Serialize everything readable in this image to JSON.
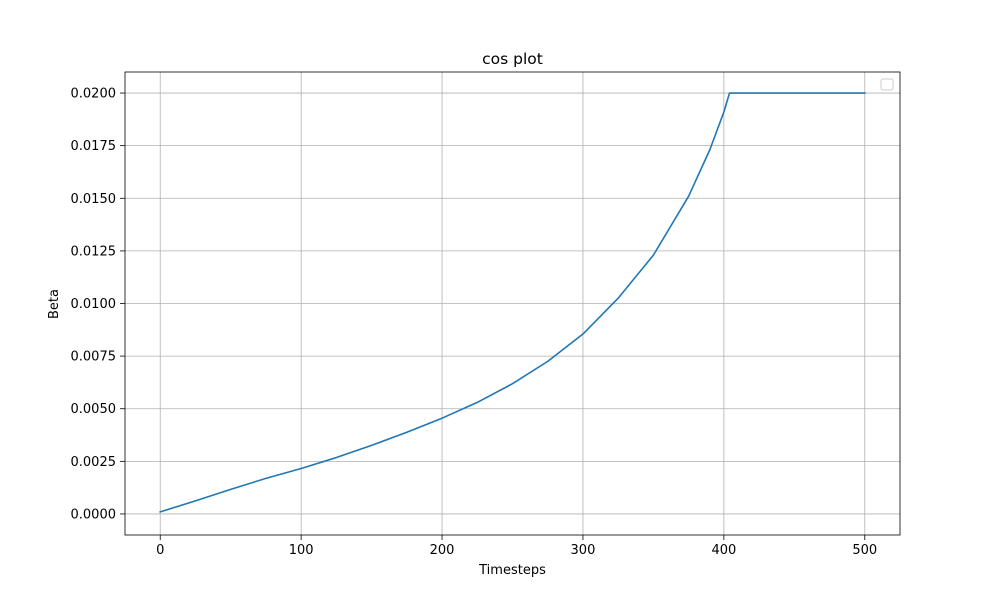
{
  "chart_data": {
    "type": "line",
    "title": "cos plot",
    "xlabel": "Timesteps",
    "ylabel": "Beta",
    "xlim": [
      -25,
      525
    ],
    "ylim": [
      -0.001,
      0.021
    ],
    "xticks": [
      0,
      100,
      200,
      300,
      400,
      500
    ],
    "xtick_labels": [
      "0",
      "100",
      "200",
      "300",
      "400",
      "500"
    ],
    "yticks": [
      0,
      0.0025,
      0.005,
      0.0075,
      0.01,
      0.0125,
      0.015,
      0.0175,
      0.02
    ],
    "ytick_labels": [
      "0.0000",
      "0.0025",
      "0.0050",
      "0.0075",
      "0.0100",
      "0.0125",
      "0.0150",
      "0.0175",
      "0.0200"
    ],
    "grid": true,
    "legend": "top-right",
    "colors": {
      "line": "#1f77b4",
      "grid": "#b0b0b0",
      "frame": "#000000"
    },
    "series": [
      {
        "x": [
          0,
          25,
          50,
          75,
          100,
          125,
          150,
          175,
          200,
          225,
          250,
          275,
          300,
          325,
          350,
          375,
          390,
          400,
          404,
          405,
          425,
          450,
          475,
          500
        ],
        "values": [
          0.0001,
          0.00062,
          0.00117,
          0.00169,
          0.00216,
          0.00268,
          0.00326,
          0.00388,
          0.00455,
          0.0053,
          0.00619,
          0.00725,
          0.00855,
          0.01025,
          0.0123,
          0.0151,
          0.0173,
          0.0191,
          0.02,
          0.02,
          0.02,
          0.02,
          0.02,
          0.02
        ]
      }
    ]
  }
}
